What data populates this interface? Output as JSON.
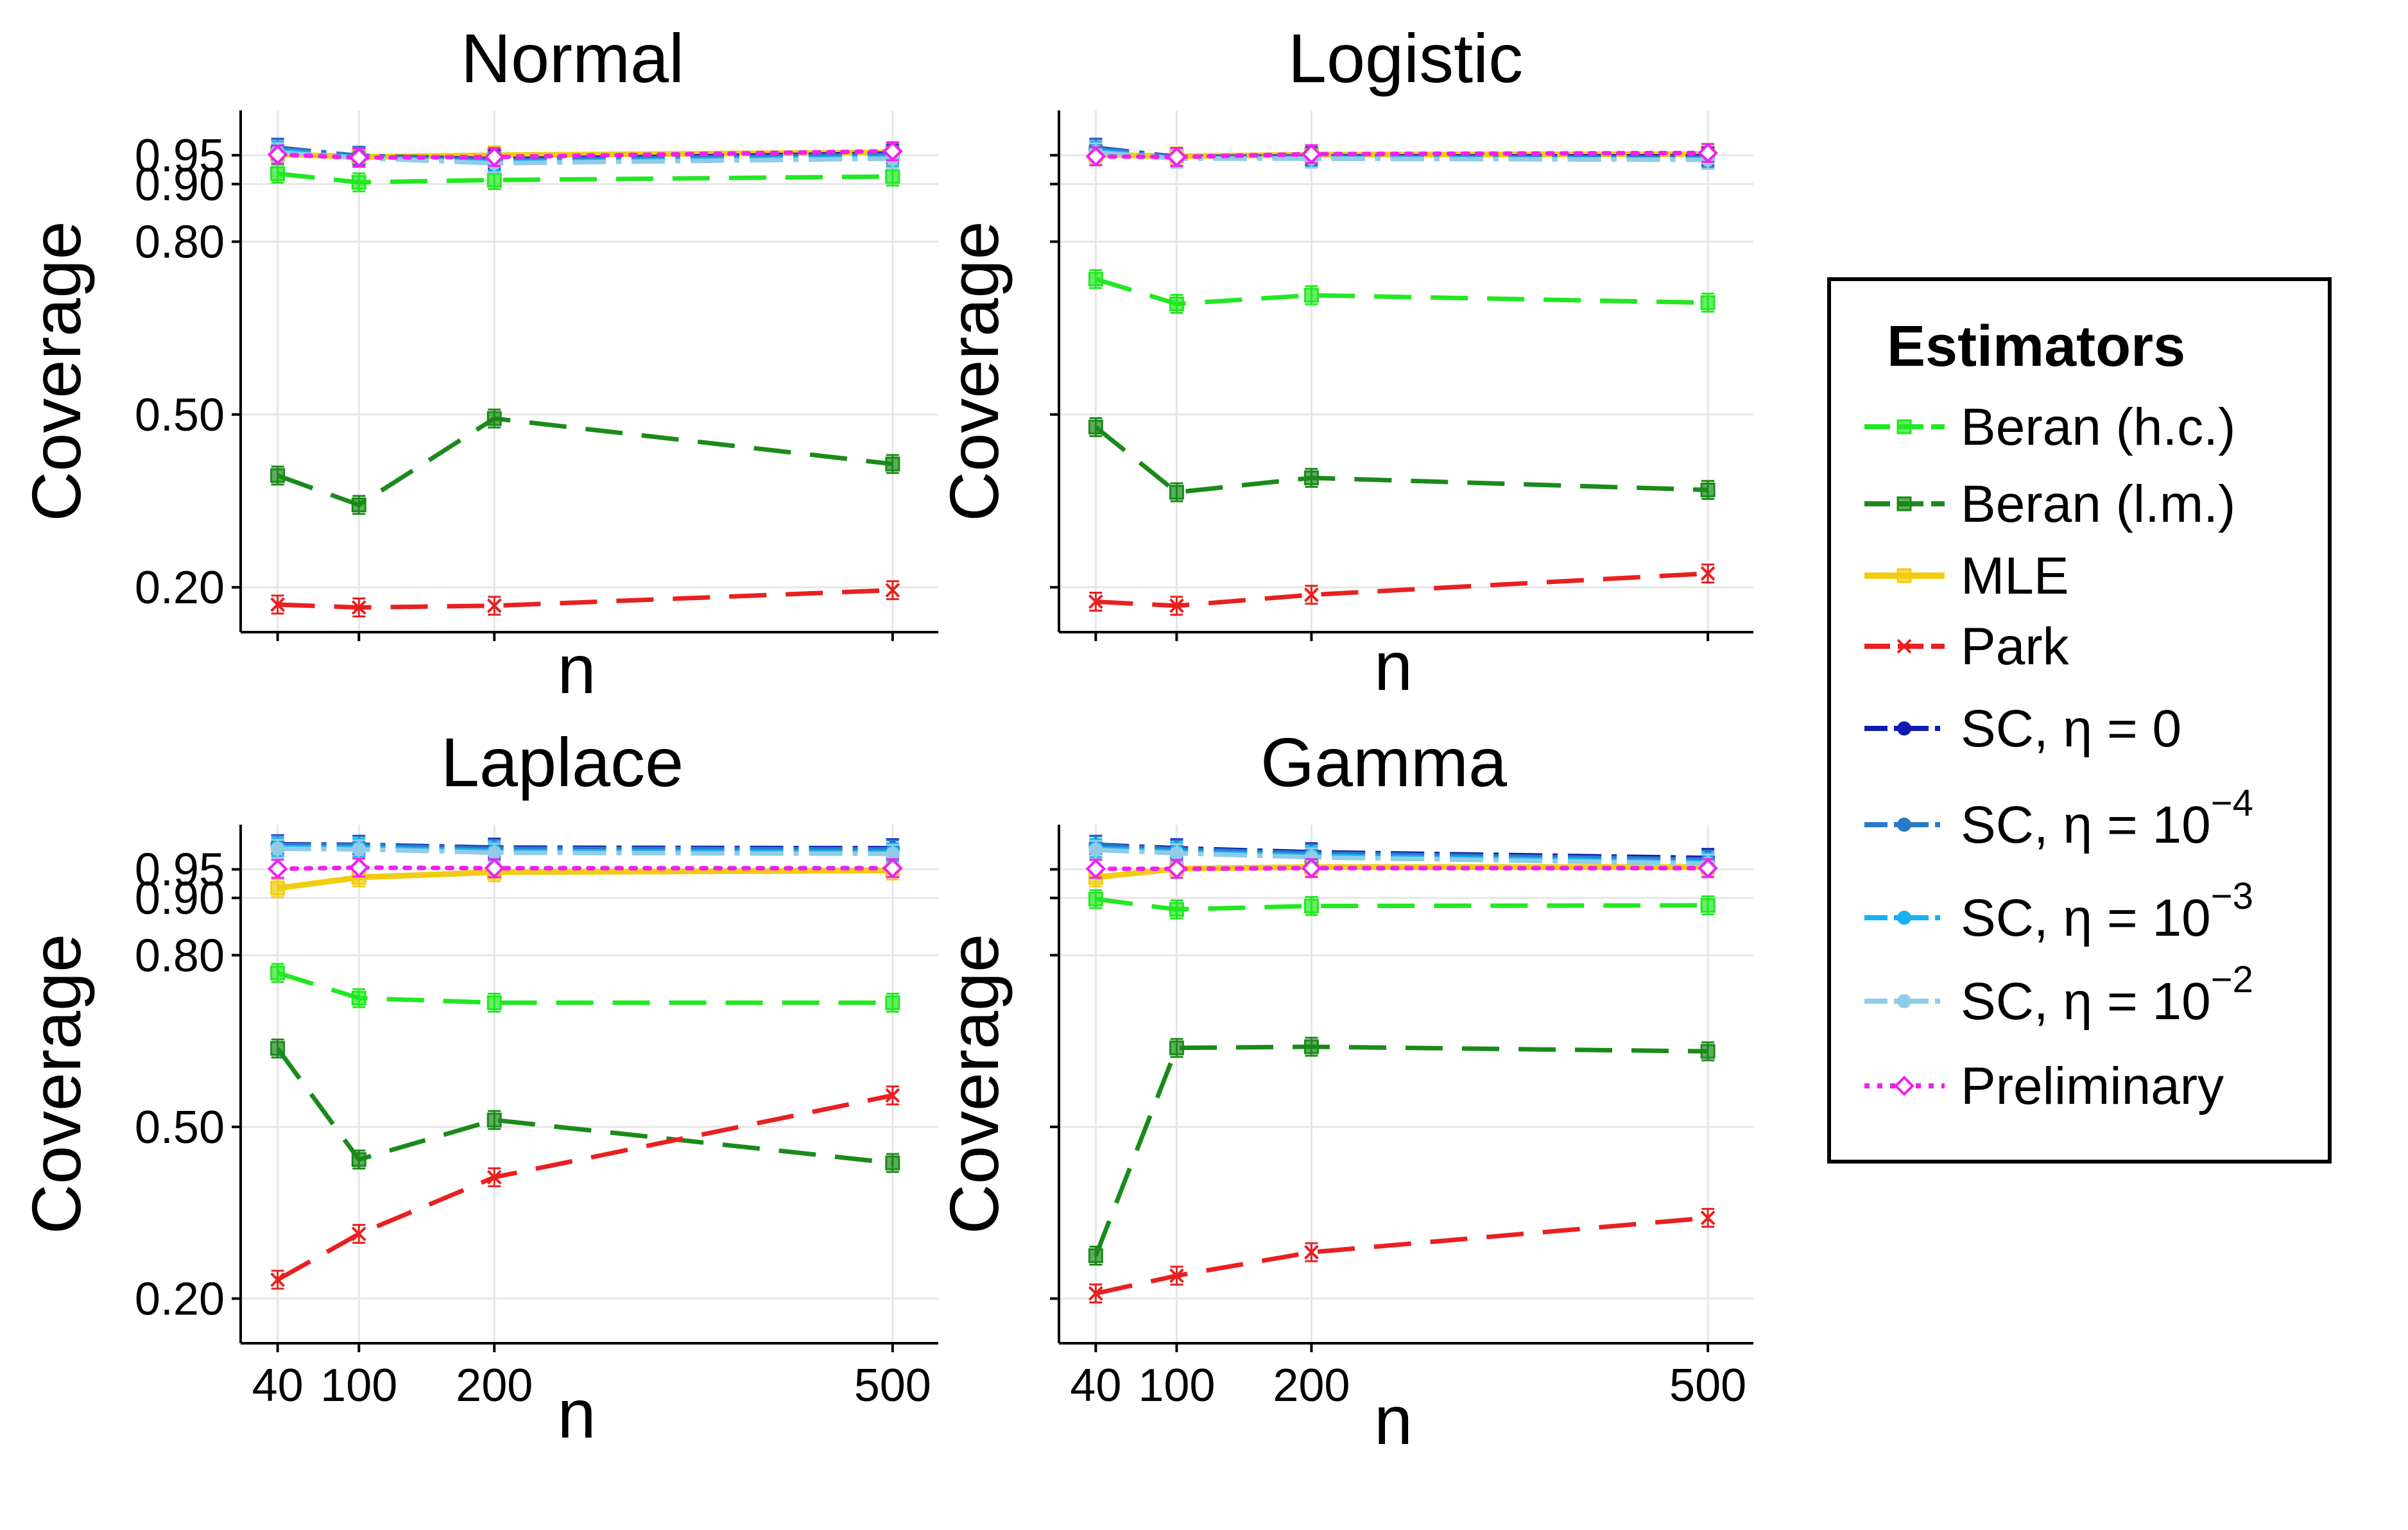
{
  "chart_data": {
    "type": "line",
    "x": [
      40,
      100,
      200,
      500
    ],
    "xlabel": "n",
    "ylabel": "Coverage",
    "yticks": [
      0.2,
      0.5,
      0.8,
      0.9,
      0.95
    ],
    "ytick_labels": [
      "0.20",
      "0.50",
      "0.80",
      "0.90",
      "0.95"
    ],
    "legend": {
      "title": "Estimators",
      "items": [
        {
          "key": "beran_hc",
          "label": "Beran (h.c.)",
          "color": "#22e822",
          "dash": "long",
          "marker": "square"
        },
        {
          "key": "beran_lm",
          "label": "Beran (l.m.)",
          "color": "#1a8a1a",
          "dash": "long",
          "marker": "square"
        },
        {
          "key": "mle",
          "label": "MLE",
          "color": "#f2cc10",
          "dash": "solid",
          "marker": "square"
        },
        {
          "key": "park",
          "label": "Park",
          "color": "#e82020",
          "dash": "long",
          "marker": "x"
        },
        {
          "key": "sc0",
          "label": "SC, η = 0",
          "base": "SC, η = 0",
          "exp": "",
          "color": "#101cb0",
          "dash": "dotdash",
          "marker": "circle"
        },
        {
          "key": "sc4",
          "label": "SC, η = 10^-4",
          "base": "SC, η = 10",
          "exp": "−4",
          "color": "#2a78c8",
          "dash": "dotdash",
          "marker": "circle"
        },
        {
          "key": "sc3",
          "label": "SC, η = 10^-3",
          "base": "SC, η = 10",
          "exp": "−3",
          "color": "#18b0f0",
          "dash": "dotdash",
          "marker": "circle"
        },
        {
          "key": "sc2",
          "label": "SC, η = 10^-2",
          "base": "SC, η = 10",
          "exp": "−2",
          "color": "#90cce8",
          "dash": "dotdash",
          "marker": "circle"
        },
        {
          "key": "prelim",
          "label": "Preliminary",
          "color": "#f020f0",
          "dash": "dotted",
          "marker": "diamond"
        }
      ]
    },
    "panels": [
      {
        "title": "Normal",
        "show_ytick_labels": true,
        "show_xtick_labels": false,
        "series": [
          {
            "key": "beran_hc",
            "values": [
              0.918,
              0.903,
              0.907,
              0.913
            ]
          },
          {
            "key": "beran_lm",
            "values": [
              0.394,
              0.343,
              0.493,
              0.414
            ]
          },
          {
            "key": "mle",
            "values": [
              0.952,
              0.947,
              0.95,
              0.955
            ]
          },
          {
            "key": "park",
            "values": [
              0.17,
              0.165,
              0.168,
              0.195
            ]
          },
          {
            "key": "sc0",
            "values": [
              0.963,
              0.949,
              0.943,
              0.953
            ]
          },
          {
            "key": "sc4",
            "values": [
              0.962,
              0.949,
              0.941,
              0.951
            ]
          },
          {
            "key": "sc3",
            "values": [
              0.958,
              0.946,
              0.938,
              0.947
            ]
          },
          {
            "key": "sc2",
            "values": [
              0.955,
              0.945,
              0.936,
              0.944
            ]
          },
          {
            "key": "prelim",
            "values": [
              0.951,
              0.946,
              0.947,
              0.957
            ]
          }
        ]
      },
      {
        "title": "Logistic",
        "show_ytick_labels": false,
        "show_xtick_labels": false,
        "series": [
          {
            "key": "beran_hc",
            "values": [
              0.735,
              0.692,
              0.707,
              0.694
            ]
          },
          {
            "key": "beran_lm",
            "values": [
              0.478,
              0.365,
              0.39,
              0.369
            ]
          },
          {
            "key": "mle",
            "values": [
              0.951,
              0.948,
              0.951,
              0.952
            ]
          },
          {
            "key": "park",
            "values": [
              0.175,
              0.168,
              0.187,
              0.224
            ]
          },
          {
            "key": "sc0",
            "values": [
              0.963,
              0.947,
              0.948,
              0.948
            ]
          },
          {
            "key": "sc4",
            "values": [
              0.962,
              0.946,
              0.947,
              0.946
            ]
          },
          {
            "key": "sc3",
            "values": [
              0.958,
              0.945,
              0.945,
              0.943
            ]
          },
          {
            "key": "sc2",
            "values": [
              0.955,
              0.944,
              0.944,
              0.942
            ]
          },
          {
            "key": "prelim",
            "values": [
              0.948,
              0.947,
              0.952,
              0.954
            ]
          }
        ]
      },
      {
        "title": "Laplace",
        "show_ytick_labels": true,
        "show_xtick_labels": true,
        "series": [
          {
            "key": "beran_hc",
            "values": [
              0.769,
              0.725,
              0.717,
              0.717
            ]
          },
          {
            "key": "beran_lm",
            "values": [
              0.637,
              0.443,
              0.512,
              0.437
            ]
          },
          {
            "key": "mle",
            "values": [
              0.917,
              0.936,
              0.945,
              0.948
            ]
          },
          {
            "key": "park",
            "values": [
              0.233,
              0.313,
              0.412,
              0.555
            ]
          },
          {
            "key": "sc0",
            "values": [
              0.994,
              0.993,
              0.988,
              0.987
            ]
          },
          {
            "key": "sc4",
            "values": [
              0.993,
              0.992,
              0.986,
              0.985
            ]
          },
          {
            "key": "sc3",
            "values": [
              0.989,
              0.988,
              0.982,
              0.98
            ]
          },
          {
            "key": "sc2",
            "values": [
              0.986,
              0.985,
              0.979,
              0.977
            ]
          },
          {
            "key": "prelim",
            "values": [
              0.951,
              0.953,
              0.952,
              0.952
            ]
          }
        ]
      },
      {
        "title": "Gamma",
        "show_ytick_labels": false,
        "show_xtick_labels": true,
        "series": [
          {
            "key": "beran_hc",
            "values": [
              0.898,
              0.88,
              0.886,
              0.887
            ]
          },
          {
            "key": "beran_lm",
            "values": [
              0.275,
              0.638,
              0.64,
              0.632
            ]
          },
          {
            "key": "mle",
            "values": [
              0.936,
              0.951,
              0.954,
              0.954
            ]
          },
          {
            "key": "park",
            "values": [
              0.209,
              0.24,
              0.281,
              0.341
            ]
          },
          {
            "key": "sc0",
            "values": [
              0.993,
              0.987,
              0.98,
              0.97
            ]
          },
          {
            "key": "sc4",
            "values": [
              0.992,
              0.985,
              0.978,
              0.967
            ]
          },
          {
            "key": "sc3",
            "values": [
              0.987,
              0.981,
              0.974,
              0.963
            ]
          },
          {
            "key": "sc2",
            "values": [
              0.984,
              0.978,
              0.971,
              0.96
            ]
          },
          {
            "key": "prelim",
            "values": [
              0.951,
              0.951,
              0.952,
              0.952
            ]
          }
        ]
      }
    ]
  }
}
